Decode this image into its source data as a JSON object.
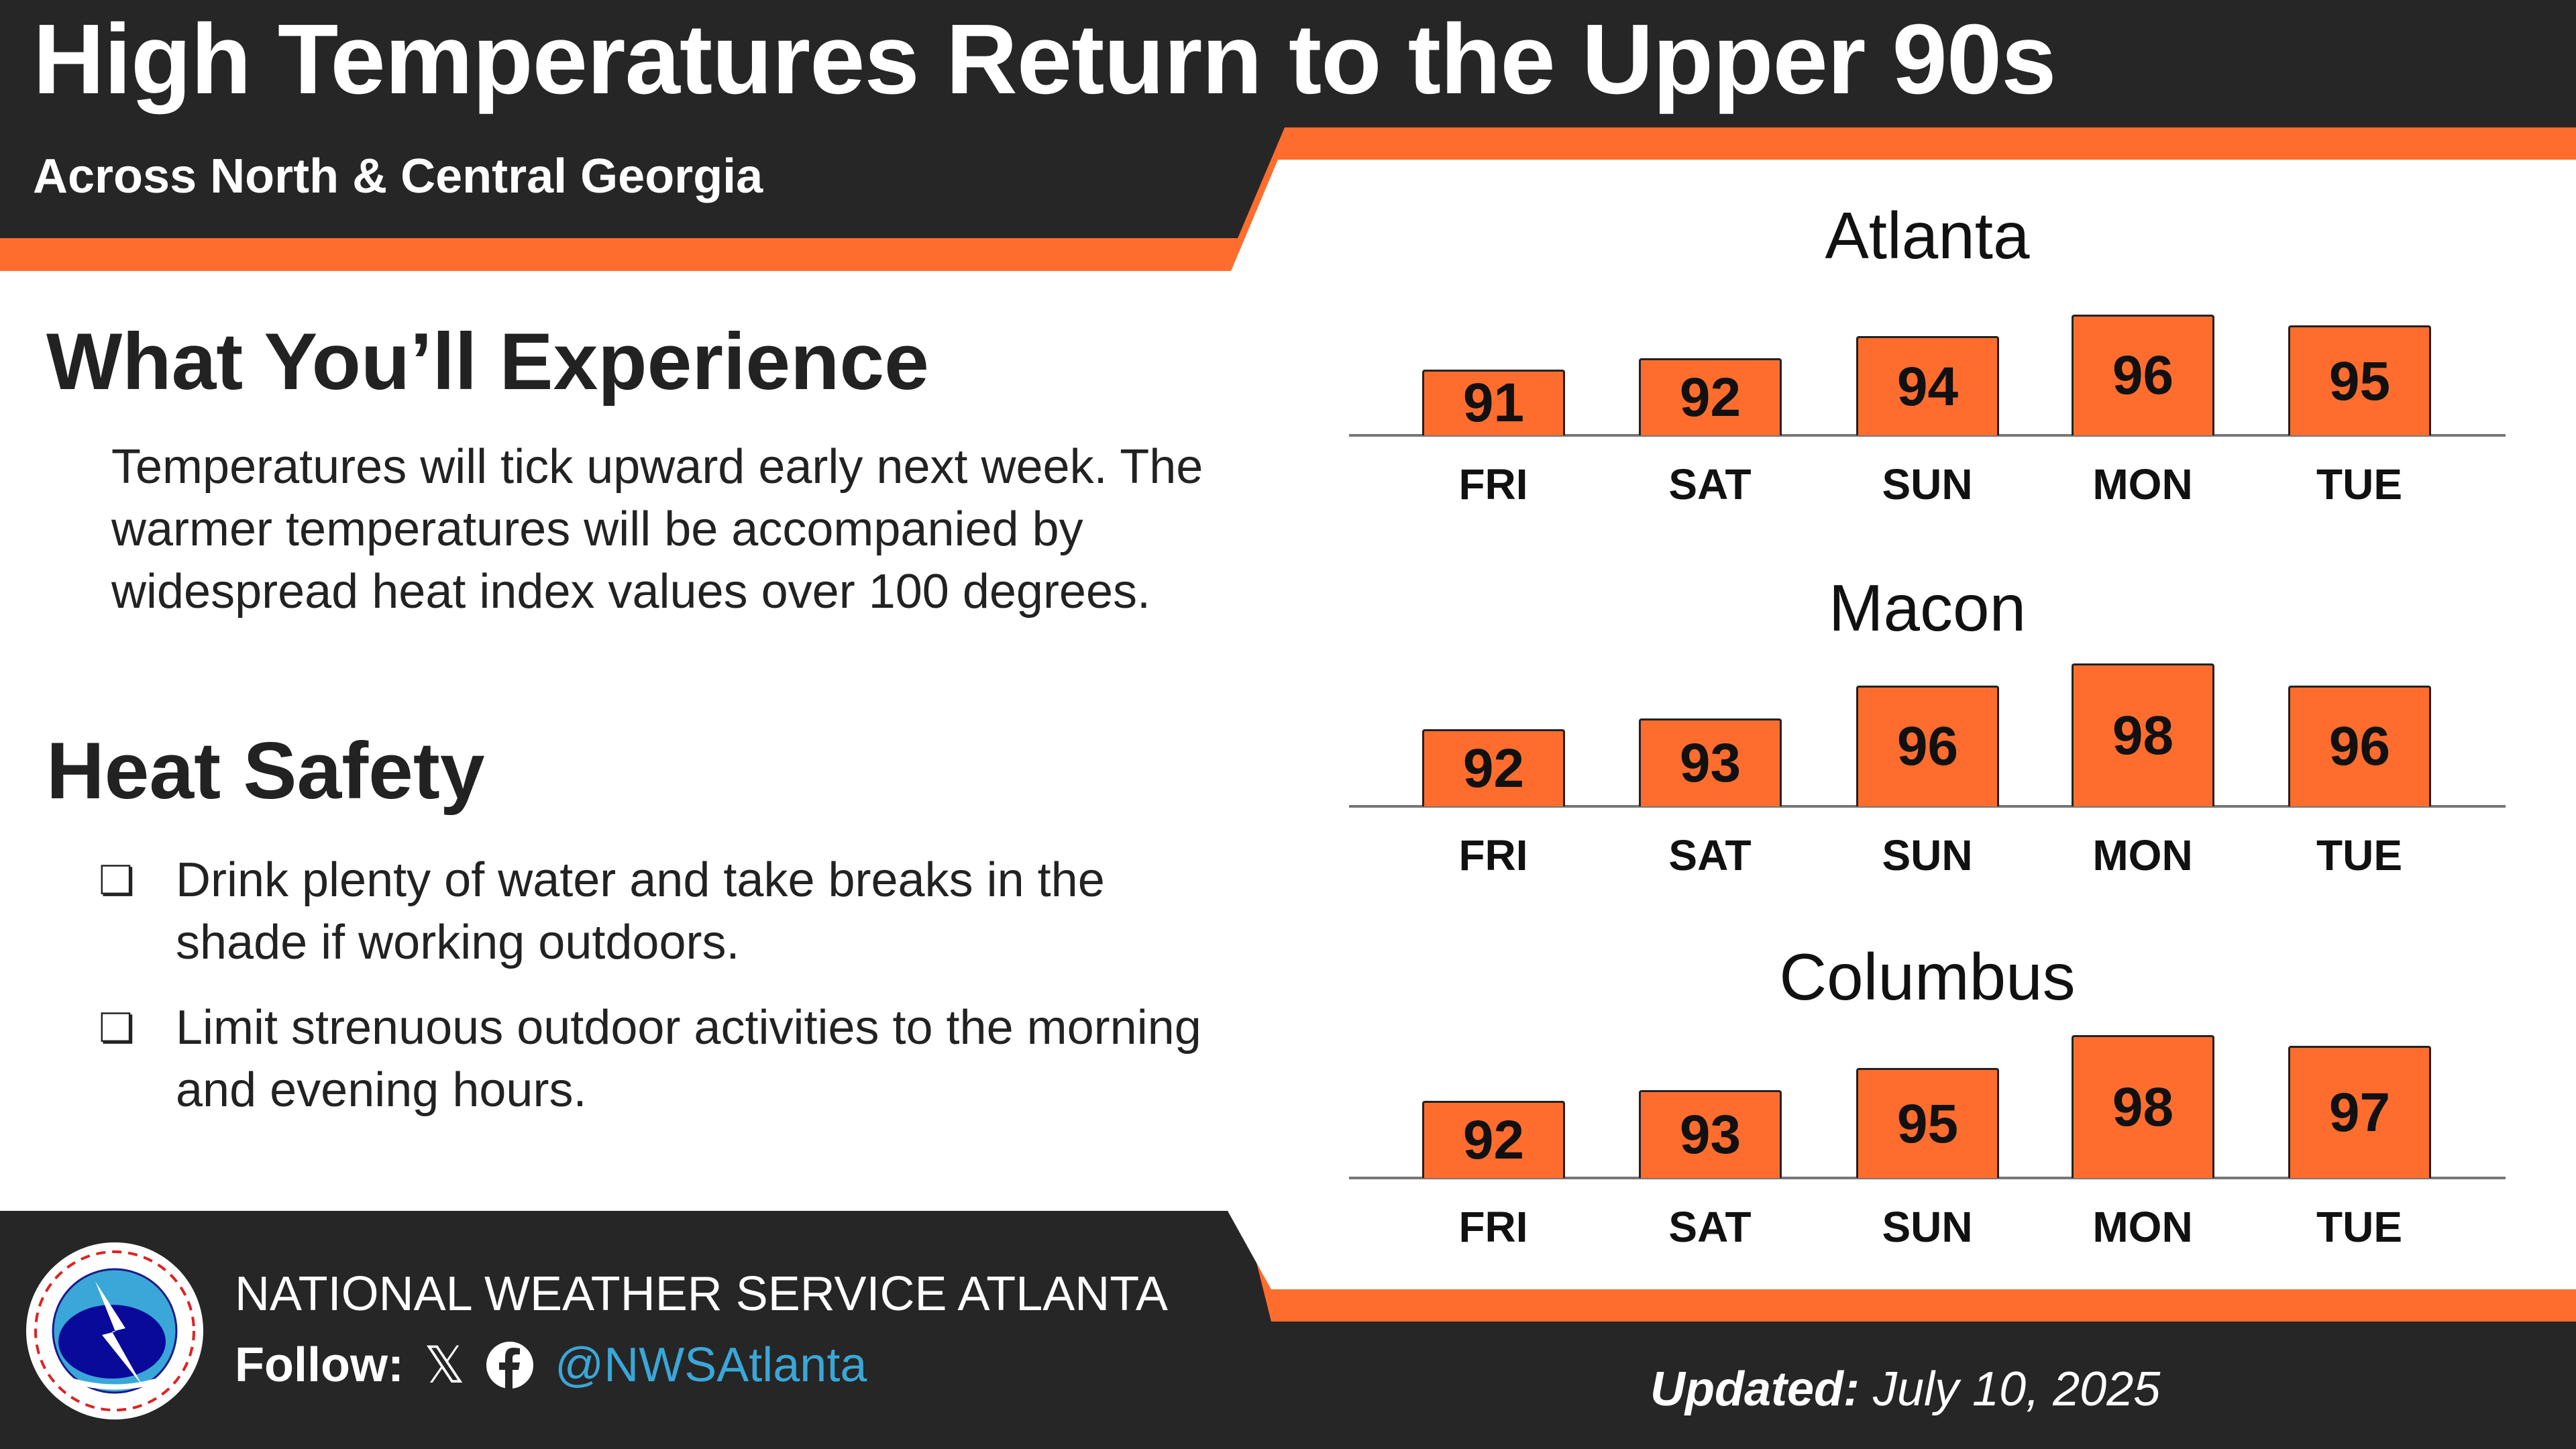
{
  "header": {
    "title": "High Temperatures Return to the Upper 90s",
    "subtitle": "Across North & Central Georgia"
  },
  "experience": {
    "heading": "What You’ll Experience",
    "text": "Temperatures will tick upward early next week. The warmer temperatures will be accompanied by widespread heat index values over 100 degrees."
  },
  "safety": {
    "heading": "Heat Safety",
    "bullet_icon": "checkbox-icon",
    "items": [
      "Drink plenty of water and take breaks in the shade if working outdoors.",
      "Limit strenuous outdoor activities to the morning and evening hours."
    ]
  },
  "colors": {
    "accent": "#ff6d2e",
    "dark": "#262626",
    "link": "#3aa7d8"
  },
  "chart_data": [
    {
      "type": "bar",
      "title": "Atlanta",
      "categories": [
        "FRI",
        "SAT",
        "SUN",
        "MON",
        "TUE"
      ],
      "values": [
        91,
        92,
        94,
        96,
        95
      ]
    },
    {
      "type": "bar",
      "title": "Macon",
      "categories": [
        "FRI",
        "SAT",
        "SUN",
        "MON",
        "TUE"
      ],
      "values": [
        92,
        93,
        96,
        98,
        96
      ]
    },
    {
      "type": "bar",
      "title": "Columbus",
      "categories": [
        "FRI",
        "SAT",
        "SUN",
        "MON",
        "TUE"
      ],
      "values": [
        92,
        93,
        95,
        98,
        97
      ]
    }
  ],
  "footer": {
    "org": "NATIONAL WEATHER SERVICE ATLANTA",
    "follow_label": "Follow:",
    "handle": "@NWSAtlanta",
    "updated_label": "Updated:",
    "updated_date": "July 10, 2025",
    "logo_text": "NATIONAL WEATHER SERVICE",
    "icons": [
      "x-icon",
      "facebook-icon",
      "nws-logo"
    ]
  }
}
